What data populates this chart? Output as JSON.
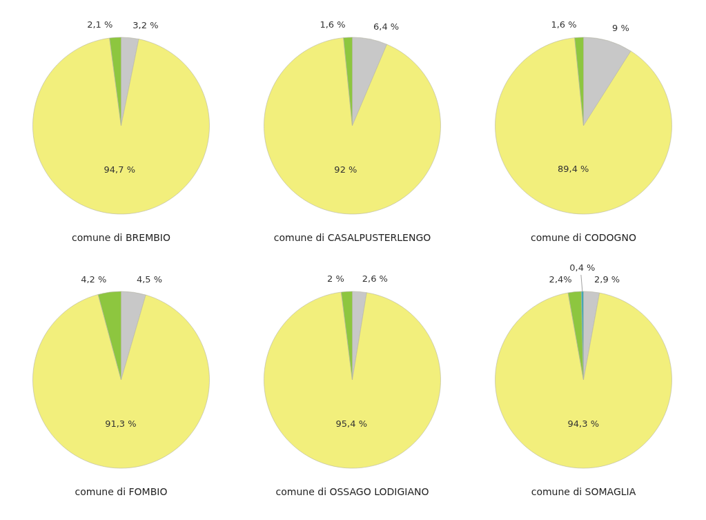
{
  "chart_data": [
    {
      "type": "pie",
      "title": "comune di BREMBIO",
      "categories": [
        null,
        null,
        null
      ],
      "values": [
        3.2,
        94.7,
        2.1
      ],
      "value_labels": [
        "3,2 %",
        "94,7 %",
        "2,1 %"
      ],
      "colors": [
        "#c8c8c8",
        "#f2ef7c",
        "#8dc63f"
      ]
    },
    {
      "type": "pie",
      "title": "comune di CASALPUSTERLENGO",
      "categories": [
        null,
        null,
        null
      ],
      "values": [
        6.4,
        92,
        1.6
      ],
      "value_labels": [
        "6,4 %",
        "92 %",
        "1,6 %"
      ],
      "colors": [
        "#c8c8c8",
        "#f2ef7c",
        "#8dc63f"
      ]
    },
    {
      "type": "pie",
      "title": "comune di CODOGNO",
      "categories": [
        null,
        null,
        null
      ],
      "values": [
        9,
        89.4,
        1.6
      ],
      "value_labels": [
        "9 %",
        "89,4 %",
        "1,6 %"
      ],
      "colors": [
        "#c8c8c8",
        "#f2ef7c",
        "#8dc63f"
      ]
    },
    {
      "type": "pie",
      "title": "comune di FOMBIO",
      "categories": [
        null,
        null,
        null
      ],
      "values": [
        4.5,
        91.3,
        4.2
      ],
      "value_labels": [
        "4,5 %",
        "91,3 %",
        "4,2 %"
      ],
      "colors": [
        "#c8c8c8",
        "#f2ef7c",
        "#8dc63f"
      ]
    },
    {
      "type": "pie",
      "title": "comune di OSSAGO LODIGIANO",
      "categories": [
        null,
        null,
        null
      ],
      "values": [
        2.6,
        95.4,
        2
      ],
      "value_labels": [
        "2,6 %",
        "95,4 %",
        "2 %"
      ],
      "colors": [
        "#c8c8c8",
        "#f2ef7c",
        "#8dc63f"
      ]
    },
    {
      "type": "pie",
      "title": "comune di SOMAGLIA",
      "categories": [
        null,
        null,
        null,
        null
      ],
      "values": [
        2.9,
        94.3,
        2.4,
        0.4
      ],
      "value_labels": [
        "2,9 %",
        "94,3 %",
        "2,4%",
        "0,4 %"
      ],
      "colors": [
        "#c8c8c8",
        "#f2ef7c",
        "#8dc63f",
        "#3fa7b5"
      ]
    }
  ]
}
